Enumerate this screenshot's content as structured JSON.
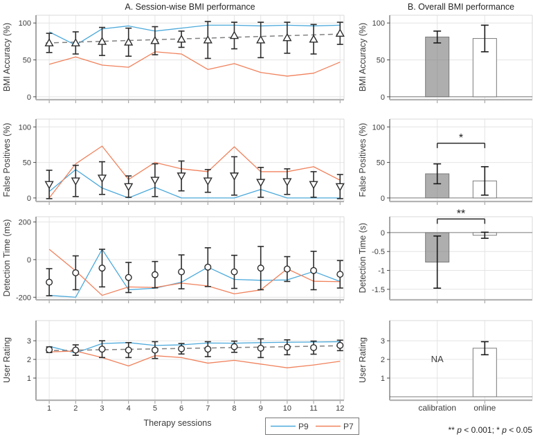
{
  "figure": {
    "title_a": "A. Session-wise BMI performance",
    "title_b": "B. Overall BMI performance",
    "xlabel_a": "Therapy sessions",
    "footnote": "** p < 0.001; * p < 0.05",
    "legend": [
      {
        "label": "P9",
        "color": "#4CA9DB"
      },
      {
        "label": "P7",
        "color": "#F0815B"
      }
    ]
  },
  "colors": {
    "p9_blue": "#4CA9DB",
    "p7_orange": "#F0815B",
    "trend_gray": "#7f7f7f",
    "marker_edge": "#2b2b2b",
    "axis_dark": "#4a4a4a",
    "axis_bottom": "#b3b3b3",
    "grid": "#e4e4e4",
    "box_light": "#d9d9d9",
    "bar_gray_fill": "#787878",
    "bar_edge": "#7a7a7a",
    "zero_line": "#7d7d7d",
    "text": "#3c3c3c"
  },
  "chart_data": [
    {
      "id": "session-bmi-accuracy",
      "panel": "A",
      "row": 0,
      "type": "line",
      "ylabel": "BMI Accuracy (%)",
      "yticks": [
        0,
        50,
        100
      ],
      "ylim": [
        -3,
        110.5
      ],
      "x": [
        1,
        2,
        3,
        4,
        5,
        6,
        7,
        8,
        9,
        10,
        11,
        12
      ],
      "xlim": [
        0.5,
        12.15
      ],
      "series": [
        {
          "name": "P9",
          "color": "#4CA9DB",
          "values": [
            88,
            70,
            92,
            96,
            89,
            93,
            97,
            97,
            96,
            97,
            96,
            97
          ]
        },
        {
          "name": "P7",
          "color": "#F0815B",
          "values": [
            44,
            54,
            43,
            40,
            61,
            58,
            37,
            45,
            33,
            28,
            32,
            47
          ]
        }
      ],
      "mean_series": {
        "marker": "triangle-up",
        "values": [
          73,
          73,
          75,
          74,
          76,
          78,
          77,
          83,
          77,
          80,
          78,
          86
        ],
        "errors": [
          13,
          15,
          19,
          19,
          19,
          11,
          25,
          18,
          24,
          21,
          20,
          15
        ]
      },
      "trend": [
        73,
        85
      ]
    },
    {
      "id": "session-false-positives",
      "panel": "A",
      "row": 1,
      "type": "line",
      "ylabel": "False Positives (%)",
      "yticks": [
        0,
        50,
        100
      ],
      "ylim": [
        -4,
        111
      ],
      "x": [
        1,
        2,
        3,
        4,
        5,
        6,
        7,
        8,
        9,
        10,
        11,
        12
      ],
      "xlim": [
        0.5,
        12.15
      ],
      "series": [
        {
          "name": "P9",
          "color": "#4CA9DB",
          "values": [
            9,
            40,
            14,
            0,
            15,
            0,
            0,
            0,
            12,
            0,
            0,
            0
          ]
        },
        {
          "name": "P7",
          "color": "#F0815B",
          "values": [
            0,
            48,
            73,
            26,
            50,
            41,
            37,
            72,
            37,
            37,
            44,
            25
          ]
        }
      ],
      "mean_series": {
        "marker": "triangle-down",
        "values": [
          19,
          24,
          28,
          16,
          25,
          31,
          24,
          31,
          22,
          23,
          19,
          16
        ],
        "errors": [
          20,
          22,
          23,
          15,
          23,
          21,
          16,
          27,
          21,
          18,
          18,
          17
        ]
      },
      "trend": null
    },
    {
      "id": "session-detection-time",
      "panel": "A",
      "row": 2,
      "type": "line",
      "ylabel": "Detection Time (ms)",
      "yticks": [
        -200,
        0,
        200
      ],
      "ylim": [
        -210,
        228
      ],
      "x": [
        1,
        2,
        3,
        4,
        5,
        6,
        7,
        8,
        9,
        10,
        11,
        12
      ],
      "xlim": [
        0.5,
        12.15
      ],
      "series": [
        {
          "name": "P9",
          "color": "#4CA9DB",
          "values": [
            -190,
            -200,
            55,
            -160,
            -152,
            -120,
            -40,
            -105,
            -110,
            -108,
            -63,
            -116
          ]
        },
        {
          "name": "P7",
          "color": "#F0815B",
          "values": [
            55,
            -60,
            -190,
            -145,
            -148,
            -125,
            -140,
            -182,
            -161,
            -49,
            -115,
            -117
          ]
        }
      ],
      "mean_series": {
        "marker": "circle",
        "values": [
          -120,
          -70,
          -45,
          -95,
          -80,
          -65,
          -40,
          -65,
          -45,
          -50,
          -58,
          -78
        ],
        "errors": [
          72,
          90,
          100,
          80,
          70,
          90,
          103,
          88,
          115,
          66,
          102,
          73
        ]
      },
      "trend": null
    },
    {
      "id": "session-user-rating",
      "panel": "A",
      "row": 3,
      "type": "line",
      "ylabel": "User Rating",
      "yticks": [
        1,
        2,
        3
      ],
      "ylim": [
        -0.15,
        4.08
      ],
      "x": [
        1,
        2,
        3,
        4,
        5,
        6,
        7,
        8,
        9,
        10,
        11,
        12
      ],
      "xlim": [
        0.5,
        12.15
      ],
      "xticklabels": true,
      "series": [
        {
          "name": "P9",
          "color": "#4CA9DB",
          "values": [
            2.7,
            2.35,
            2.85,
            2.9,
            2.75,
            2.78,
            2.88,
            2.87,
            2.9,
            2.92,
            2.93,
            2.95
          ]
        },
        {
          "name": "P7",
          "color": "#F0815B",
          "values": [
            2.4,
            2.45,
            2.1,
            1.65,
            2.2,
            2.1,
            1.8,
            1.95,
            1.75,
            1.55,
            1.7,
            1.9
          ]
        }
      ],
      "mean_series": {
        "marker": "circle",
        "values": [
          2.52,
          2.5,
          2.55,
          2.5,
          2.5,
          2.57,
          2.55,
          2.68,
          2.6,
          2.65,
          2.63,
          2.75
        ],
        "errors": [
          0.15,
          0.28,
          0.45,
          0.4,
          0.45,
          0.28,
          0.4,
          0.3,
          0.5,
          0.4,
          0.35,
          0.28
        ]
      },
      "trend": [
        2.47,
        2.73
      ]
    },
    {
      "id": "overall-bmi-accuracy",
      "panel": "B",
      "row": 0,
      "type": "bar",
      "ylabel": "BMI Accuracy (%)",
      "yticks": [
        0,
        50,
        100
      ],
      "ylim": [
        -3,
        110.5
      ],
      "categories": [
        "calibration",
        "online"
      ],
      "values": [
        81,
        79
      ],
      "errors": [
        8,
        18
      ],
      "bar_styles": [
        {
          "fill": "#787878",
          "fill_opacity": 0.6
        },
        {
          "fill": "#ffffff",
          "fill_opacity": 1
        }
      ],
      "sig": null
    },
    {
      "id": "overall-false-positives",
      "panel": "B",
      "row": 1,
      "type": "bar",
      "ylabel": "False Positives (%)",
      "yticks": [
        0,
        50,
        100
      ],
      "ylim": [
        -4,
        111
      ],
      "categories": [
        "calibration",
        "online"
      ],
      "values": [
        34,
        24
      ],
      "errors": [
        14,
        20
      ],
      "bar_styles": [
        {
          "fill": "#787878",
          "fill_opacity": 0.6
        },
        {
          "fill": "#ffffff",
          "fill_opacity": 1
        }
      ],
      "sig": {
        "label": "*",
        "y": 77
      }
    },
    {
      "id": "overall-detection-time",
      "panel": "B",
      "row": 2,
      "type": "bar",
      "ylabel": "Detection Time (s)",
      "yticks": [
        0,
        -0.5,
        -1,
        -1.5
      ],
      "ylim": [
        -1.76,
        0.42
      ],
      "categories": [
        "calibration",
        "online"
      ],
      "values": [
        -0.78,
        -0.07
      ],
      "errors": [
        0.69,
        0.08
      ],
      "bar_styles": [
        {
          "fill": "#787878",
          "fill_opacity": 0.6
        },
        {
          "fill": "#ffffff",
          "fill_opacity": 1
        }
      ],
      "sig": {
        "label": "**",
        "y": 0.36
      }
    },
    {
      "id": "overall-user-rating",
      "panel": "B",
      "row": 3,
      "type": "bar",
      "ylabel": "User Rating",
      "yticks": [
        1,
        2,
        3
      ],
      "ylim": [
        -0.15,
        4.08
      ],
      "categories": [
        "calibration",
        "online"
      ],
      "xticklabels": true,
      "values": [
        null,
        2.6
      ],
      "errors": [
        null,
        0.35
      ],
      "na_text": "NA",
      "bar_styles": [
        {
          "fill": "#787878",
          "fill_opacity": 0.6
        },
        {
          "fill": "#ffffff",
          "fill_opacity": 1
        }
      ],
      "sig": null
    }
  ]
}
